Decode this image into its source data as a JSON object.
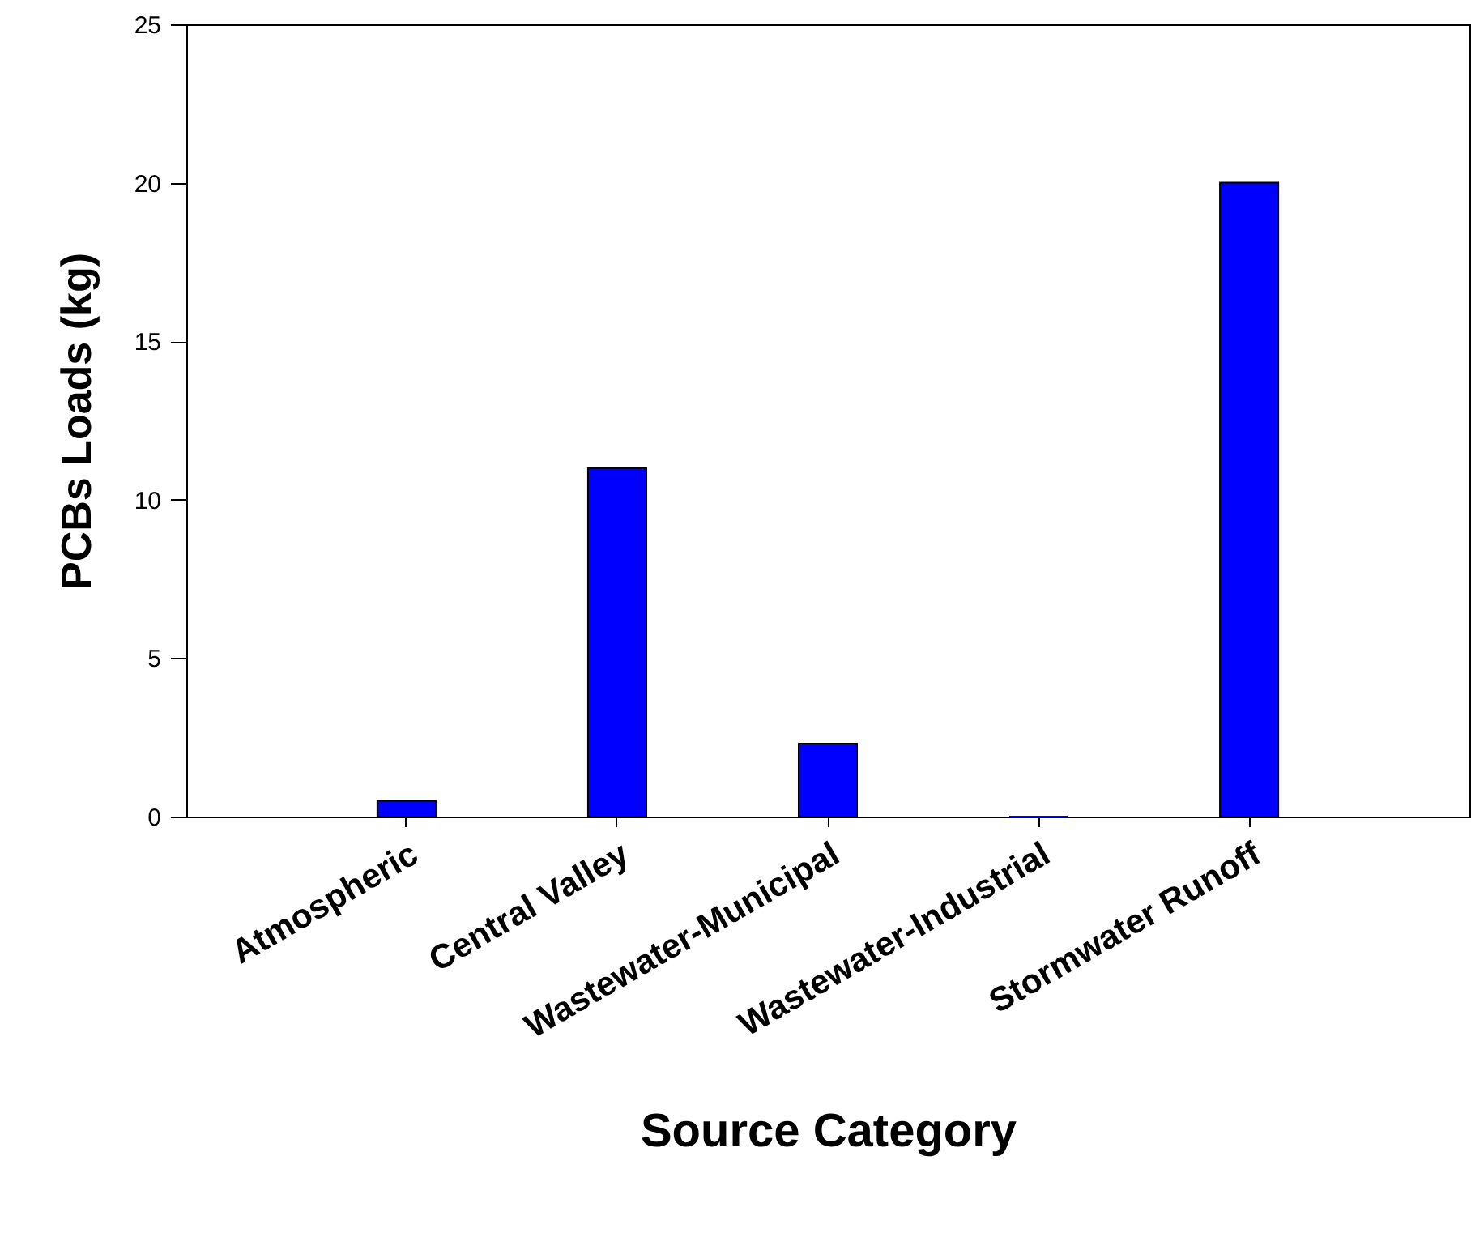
{
  "chart_data": {
    "type": "bar",
    "xlabel": "Source Category",
    "ylabel": "PCBs Loads (kg)",
    "categories": [
      "Atmospheric",
      "Central Valley",
      "Wastewater-Municipal",
      "Wastewater-Industrial",
      "Stormwater Runoff"
    ],
    "values": [
      0.5,
      11,
      2.3,
      0,
      20
    ],
    "color": "#0000ff",
    "ylim": [
      0,
      25
    ],
    "yticks": [
      0,
      5,
      10,
      15,
      20,
      25
    ],
    "grid": false
  }
}
